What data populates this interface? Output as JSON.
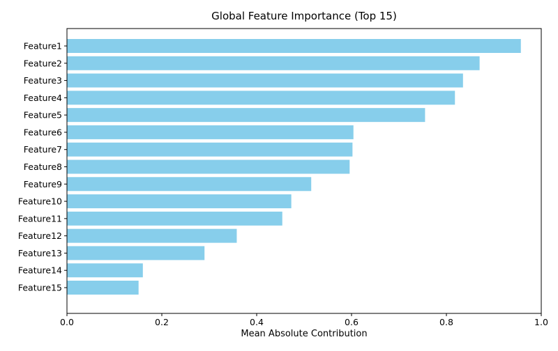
{
  "chart_data": {
    "type": "bar",
    "orientation": "horizontal",
    "title": "Global Feature Importance (Top 15)",
    "xlabel": "Mean Absolute Contribution",
    "ylabel": "",
    "xlim": [
      0.0,
      1.0
    ],
    "xticks": [
      0.0,
      0.2,
      0.4,
      0.6,
      0.8,
      1.0
    ],
    "xtick_labels": [
      "0.0",
      "0.2",
      "0.4",
      "0.6",
      "0.8",
      "1.0"
    ],
    "categories": [
      "Feature1",
      "Feature2",
      "Feature3",
      "Feature4",
      "Feature5",
      "Feature6",
      "Feature7",
      "Feature8",
      "Feature9",
      "Feature10",
      "Feature11",
      "Feature12",
      "Feature13",
      "Feature14",
      "Feature15"
    ],
    "values": [
      0.957,
      0.87,
      0.835,
      0.818,
      0.755,
      0.604,
      0.602,
      0.596,
      0.515,
      0.473,
      0.454,
      0.358,
      0.29,
      0.16,
      0.151
    ],
    "bar_color": "#87ceeb",
    "grid": false,
    "legend": "none"
  }
}
